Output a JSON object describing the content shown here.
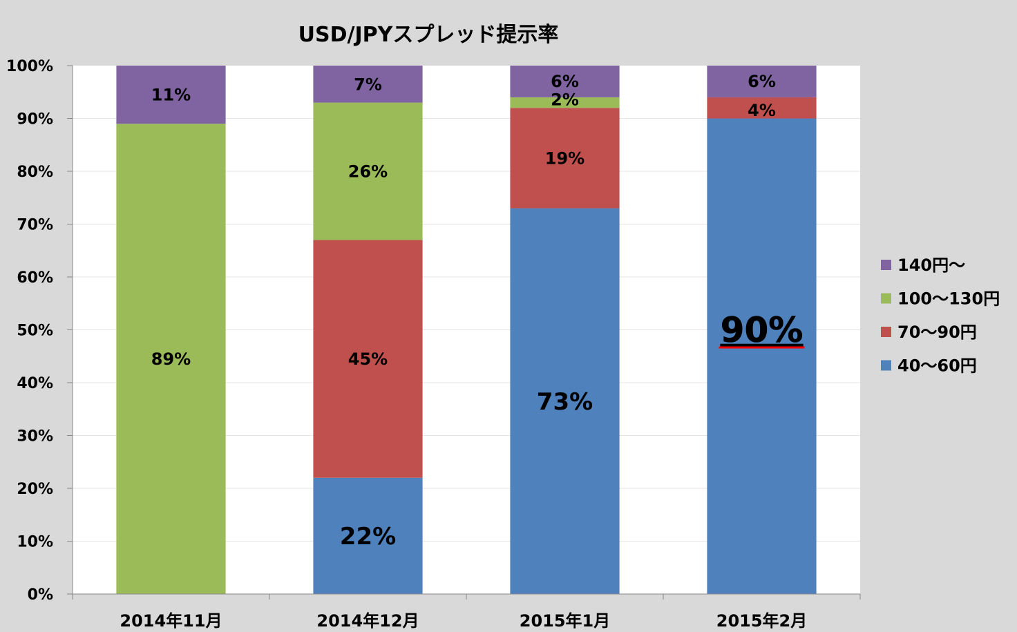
{
  "chart_data": {
    "type": "bar",
    "stacked": true,
    "title": "USD/JPYスプレッド提示率",
    "xlabel": "",
    "ylabel": "",
    "ylim": [
      0,
      100
    ],
    "y_ticks": [
      "0%",
      "10%",
      "20%",
      "30%",
      "40%",
      "50%",
      "60%",
      "70%",
      "80%",
      "90%",
      "100%"
    ],
    "categories": [
      "2014年11月",
      "2014年12月",
      "2015年1月",
      "2015年2月"
    ],
    "series": [
      {
        "name": "40～60円",
        "color": "#4f81bd",
        "values": [
          0,
          22,
          73,
          90
        ],
        "labels": [
          "",
          "22%",
          "73%",
          "90%"
        ]
      },
      {
        "name": "70～90円",
        "color": "#c0504d",
        "values": [
          0,
          45,
          19,
          4
        ],
        "labels": [
          "",
          "45%",
          "19%",
          "4%"
        ]
      },
      {
        "name": "100～130円",
        "color": "#9bbb59",
        "values": [
          89,
          26,
          2,
          0
        ],
        "labels": [
          "89%",
          "26%",
          "2%",
          ""
        ]
      },
      {
        "name": "140円～",
        "color": "#8064a2",
        "values": [
          11,
          7,
          6,
          6
        ],
        "labels": [
          "11%",
          "7%",
          "6%",
          "6%"
        ]
      }
    ],
    "legend": [
      "140円～",
      "100～130円",
      "70～90円",
      "40～60円"
    ],
    "legend_position": "right",
    "grid": true,
    "highlight": {
      "label": "90%",
      "color": "#ff0000"
    }
  }
}
